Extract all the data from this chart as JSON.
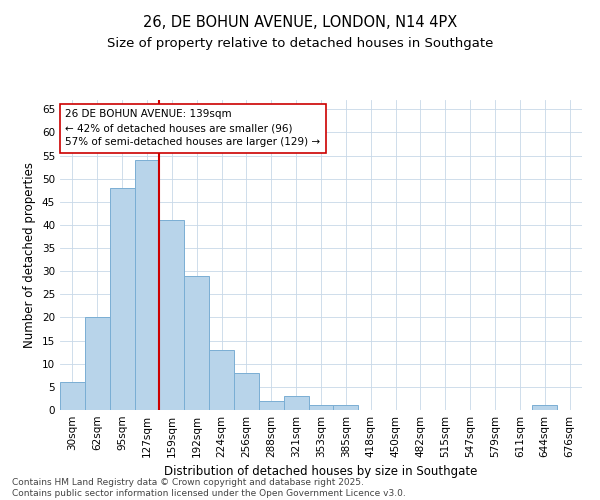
{
  "title_line1": "26, DE BOHUN AVENUE, LONDON, N14 4PX",
  "title_line2": "Size of property relative to detached houses in Southgate",
  "xlabel": "Distribution of detached houses by size in Southgate",
  "ylabel": "Number of detached properties",
  "categories": [
    "30sqm",
    "62sqm",
    "95sqm",
    "127sqm",
    "159sqm",
    "192sqm",
    "224sqm",
    "256sqm",
    "288sqm",
    "321sqm",
    "353sqm",
    "385sqm",
    "418sqm",
    "450sqm",
    "482sqm",
    "515sqm",
    "547sqm",
    "579sqm",
    "611sqm",
    "644sqm",
    "676sqm"
  ],
  "values": [
    6,
    20,
    48,
    54,
    41,
    29,
    13,
    8,
    2,
    3,
    1,
    1,
    0,
    0,
    0,
    0,
    0,
    0,
    0,
    1,
    0
  ],
  "bar_color": "#b8d4ea",
  "bar_edge_color": "#7aaed4",
  "vline_x_index": 3.5,
  "vline_color": "#cc0000",
  "annotation_text": "26 DE BOHUN AVENUE: 139sqm\n← 42% of detached houses are smaller (96)\n57% of semi-detached houses are larger (129) →",
  "annotation_box_color": "#ffffff",
  "annotation_box_edge": "#cc0000",
  "ylim": [
    0,
    67
  ],
  "yticks": [
    0,
    5,
    10,
    15,
    20,
    25,
    30,
    35,
    40,
    45,
    50,
    55,
    60,
    65
  ],
  "grid_color": "#c8d8e8",
  "background_color": "#ffffff",
  "footer_line1": "Contains HM Land Registry data © Crown copyright and database right 2025.",
  "footer_line2": "Contains public sector information licensed under the Open Government Licence v3.0.",
  "title_fontsize": 10.5,
  "subtitle_fontsize": 9.5,
  "axis_label_fontsize": 8.5,
  "tick_fontsize": 7.5,
  "annotation_fontsize": 7.5,
  "footer_fontsize": 6.5
}
